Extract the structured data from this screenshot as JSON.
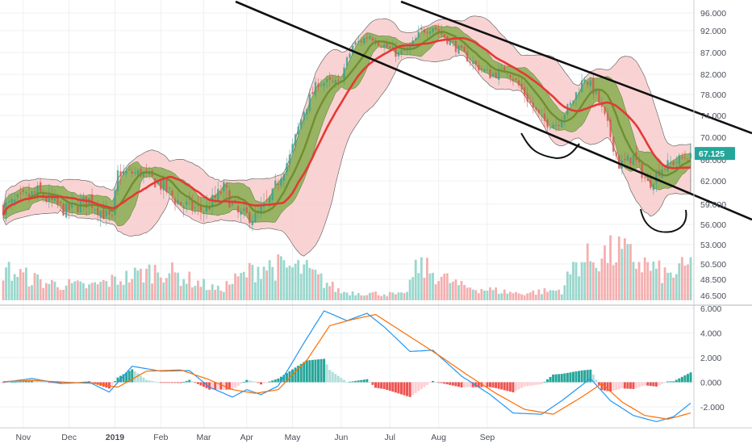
{
  "chart_data": [
    {
      "type": "candlestick",
      "panel": "price",
      "title": "",
      "xlabel": "",
      "ylabel": "",
      "ylim": [
        44.5,
        97.5
      ],
      "x_ticks": [
        "Nov",
        "Dec",
        "2019",
        "Feb",
        "Mar",
        "Apr",
        "May",
        "Jun",
        "Jul",
        "Aug",
        "Sep"
      ],
      "y_ticks": [
        "96.000",
        "92.000",
        "87.000",
        "82.000",
        "78.000",
        "74.000",
        "70.000",
        "66.000",
        "62.000",
        "59.000",
        "56.000",
        "53.000",
        "50.500",
        "48.500",
        "46.500"
      ],
      "last_price_label": "67.125",
      "last_price": 67.125,
      "price_path": [
        {
          "t": 0,
          "v": 58.5
        },
        {
          "t": 12,
          "v": 60.5
        },
        {
          "t": 22,
          "v": 58.0
        },
        {
          "t": 30,
          "v": 59.5
        },
        {
          "t": 38,
          "v": 56.5
        },
        {
          "t": 40,
          "v": 63.5
        },
        {
          "t": 48,
          "v": 63.5
        },
        {
          "t": 55,
          "v": 61.5
        },
        {
          "t": 62,
          "v": 59.0
        },
        {
          "t": 70,
          "v": 58.0
        },
        {
          "t": 77,
          "v": 61.0
        },
        {
          "t": 82,
          "v": 57.5
        },
        {
          "t": 88,
          "v": 57.0
        },
        {
          "t": 94,
          "v": 60.0
        },
        {
          "t": 100,
          "v": 66.5
        },
        {
          "t": 105,
          "v": 75.0
        },
        {
          "t": 110,
          "v": 80.5
        },
        {
          "t": 117,
          "v": 80.0
        },
        {
          "t": 122,
          "v": 88.5
        },
        {
          "t": 128,
          "v": 91.0
        },
        {
          "t": 132,
          "v": 89.0
        },
        {
          "t": 138,
          "v": 86.5
        },
        {
          "t": 142,
          "v": 88.0
        },
        {
          "t": 146,
          "v": 92.0
        },
        {
          "t": 150,
          "v": 93.0
        },
        {
          "t": 155,
          "v": 90.0
        },
        {
          "t": 160,
          "v": 87.0
        },
        {
          "t": 165,
          "v": 84.0
        },
        {
          "t": 170,
          "v": 82.0
        },
        {
          "t": 176,
          "v": 83.0
        },
        {
          "t": 182,
          "v": 78.0
        },
        {
          "t": 188,
          "v": 73.0
        },
        {
          "t": 193,
          "v": 72.5
        },
        {
          "t": 198,
          "v": 76.0
        },
        {
          "t": 203,
          "v": 81.5
        },
        {
          "t": 207,
          "v": 78.0
        },
        {
          "t": 211,
          "v": 72.0
        },
        {
          "t": 215,
          "v": 65.0
        },
        {
          "t": 220,
          "v": 66.5
        },
        {
          "t": 225,
          "v": 61.5
        },
        {
          "t": 230,
          "v": 64.5
        },
        {
          "t": 236,
          "v": 66.0
        },
        {
          "t": 240,
          "v": 67.125
        }
      ],
      "volume_path": [
        {
          "t": 0,
          "v": 0.45
        },
        {
          "t": 15,
          "v": 0.25
        },
        {
          "t": 30,
          "v": 0.2
        },
        {
          "t": 55,
          "v": 0.45
        },
        {
          "t": 75,
          "v": 0.15
        },
        {
          "t": 90,
          "v": 0.5
        },
        {
          "t": 105,
          "v": 0.45
        },
        {
          "t": 118,
          "v": 0.12
        },
        {
          "t": 140,
          "v": 0.08
        },
        {
          "t": 145,
          "v": 0.5
        },
        {
          "t": 160,
          "v": 0.2
        },
        {
          "t": 180,
          "v": 0.1
        },
        {
          "t": 195,
          "v": 0.15
        },
        {
          "t": 200,
          "v": 0.55
        },
        {
          "t": 215,
          "v": 0.7
        },
        {
          "t": 232,
          "v": 0.35
        },
        {
          "t": 240,
          "v": 0.5
        }
      ],
      "hand_annotations": [
        "trend channel upper line",
        "trend channel lower line",
        "curved underline near Jul",
        "curved underline near late Aug"
      ],
      "colors": {
        "up": "#26a69a",
        "down": "#ef5350",
        "ma_red": "#e53935",
        "ma_green": "#6f8f2f",
        "outer_band_fill": "#f8c8c8",
        "inner_band_fill": "#77a83f",
        "volume_up": "#8fd3c8",
        "volume_down": "#f4a6a6"
      }
    },
    {
      "type": "macd",
      "panel": "oscillator",
      "title": "",
      "xlabel": "",
      "ylabel": "",
      "ylim": [
        -3.5,
        6.5
      ],
      "y_ticks": [
        "6.000",
        "4.000",
        "2.000",
        "0.000",
        "-2.000"
      ],
      "macd_line": [
        {
          "t": 0,
          "v": 0.0
        },
        {
          "t": 10,
          "v": 0.3
        },
        {
          "t": 20,
          "v": -0.1
        },
        {
          "t": 30,
          "v": 0.0
        },
        {
          "t": 37,
          "v": -0.8
        },
        {
          "t": 45,
          "v": 1.3
        },
        {
          "t": 55,
          "v": 0.9
        },
        {
          "t": 65,
          "v": 0.95
        },
        {
          "t": 72,
          "v": -0.4
        },
        {
          "t": 80,
          "v": -1.2
        },
        {
          "t": 85,
          "v": -0.6
        },
        {
          "t": 90,
          "v": -1.0
        },
        {
          "t": 96,
          "v": -0.3
        },
        {
          "t": 105,
          "v": 3.2
        },
        {
          "t": 112,
          "v": 5.8
        },
        {
          "t": 120,
          "v": 5.0
        },
        {
          "t": 127,
          "v": 5.6
        },
        {
          "t": 133,
          "v": 4.5
        },
        {
          "t": 142,
          "v": 2.5
        },
        {
          "t": 150,
          "v": 2.6
        },
        {
          "t": 160,
          "v": 0.5
        },
        {
          "t": 170,
          "v": -1.0
        },
        {
          "t": 178,
          "v": -2.5
        },
        {
          "t": 188,
          "v": -2.6
        },
        {
          "t": 195,
          "v": -1.5
        },
        {
          "t": 205,
          "v": 0.3
        },
        {
          "t": 212,
          "v": -1.5
        },
        {
          "t": 220,
          "v": -2.7
        },
        {
          "t": 228,
          "v": -3.2
        },
        {
          "t": 234,
          "v": -2.8
        },
        {
          "t": 240,
          "v": -1.7
        }
      ],
      "signal_line": [
        {
          "t": 0,
          "v": 0.05
        },
        {
          "t": 10,
          "v": 0.15
        },
        {
          "t": 22,
          "v": 0.0
        },
        {
          "t": 32,
          "v": -0.1
        },
        {
          "t": 40,
          "v": -0.4
        },
        {
          "t": 50,
          "v": 0.9
        },
        {
          "t": 62,
          "v": 1.0
        },
        {
          "t": 72,
          "v": 0.2
        },
        {
          "t": 80,
          "v": -0.6
        },
        {
          "t": 88,
          "v": -0.9
        },
        {
          "t": 96,
          "v": -0.6
        },
        {
          "t": 106,
          "v": 1.8
        },
        {
          "t": 114,
          "v": 4.6
        },
        {
          "t": 122,
          "v": 5.1
        },
        {
          "t": 130,
          "v": 5.5
        },
        {
          "t": 140,
          "v": 4.0
        },
        {
          "t": 152,
          "v": 2.2
        },
        {
          "t": 162,
          "v": 0.6
        },
        {
          "t": 172,
          "v": -0.9
        },
        {
          "t": 182,
          "v": -2.2
        },
        {
          "t": 192,
          "v": -2.6
        },
        {
          "t": 202,
          "v": -1.2
        },
        {
          "t": 209,
          "v": -0.1
        },
        {
          "t": 216,
          "v": -1.6
        },
        {
          "t": 224,
          "v": -2.7
        },
        {
          "t": 232,
          "v": -3.0
        },
        {
          "t": 240,
          "v": -2.5
        }
      ],
      "colors": {
        "macd": "#2196f3",
        "signal": "#ff6d00",
        "hist_up_strong": "#26a69a",
        "hist_up_weak": "#b2dfdb",
        "hist_down_strong": "#ef5350",
        "hist_down_weak": "#ffcdd2"
      }
    }
  ]
}
